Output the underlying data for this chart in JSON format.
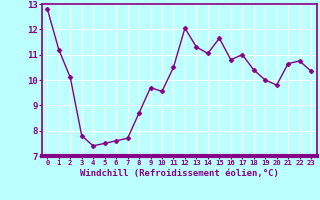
{
  "x": [
    0,
    1,
    2,
    3,
    4,
    5,
    6,
    7,
    8,
    9,
    10,
    11,
    12,
    13,
    14,
    15,
    16,
    17,
    18,
    19,
    20,
    21,
    22,
    23
  ],
  "y": [
    12.8,
    11.2,
    10.1,
    7.8,
    7.4,
    7.5,
    7.6,
    7.7,
    8.7,
    9.7,
    9.55,
    10.5,
    12.05,
    11.3,
    11.05,
    11.65,
    10.8,
    11.0,
    10.4,
    10.0,
    9.8,
    10.65,
    10.75,
    10.35
  ],
  "line_color": "#880088",
  "marker": "D",
  "marker_size": 2.5,
  "bg_color": "#bbffff",
  "grid_color": "#ffffff",
  "xlabel": "Windchill (Refroidissement éolien,°C)",
  "xlabel_color": "#880088",
  "tick_color": "#880088",
  "spine_color": "#880088",
  "xlim": [
    -0.5,
    23.5
  ],
  "ylim": [
    7,
    13
  ],
  "yticks": [
    7,
    8,
    9,
    10,
    11,
    12,
    13
  ],
  "xticks": [
    0,
    1,
    2,
    3,
    4,
    5,
    6,
    7,
    8,
    9,
    10,
    11,
    12,
    13,
    14,
    15,
    16,
    17,
    18,
    19,
    20,
    21,
    22,
    23
  ],
  "xlabel_fontsize": 6.5,
  "xtick_fontsize": 5.2,
  "ytick_fontsize": 6.5,
  "linewidth": 1.0
}
